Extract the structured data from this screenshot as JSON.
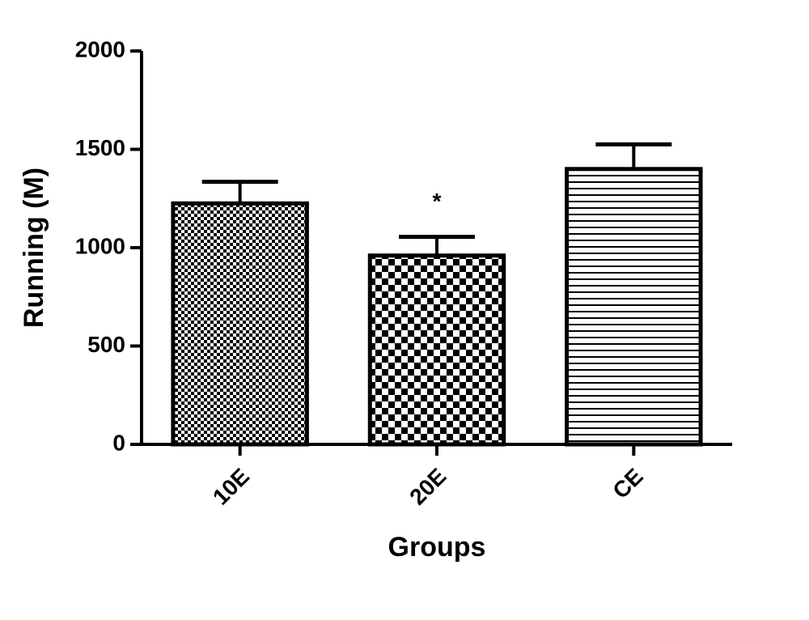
{
  "chart_data": {
    "type": "bar",
    "x_label": "Groups",
    "y_label": "Running (M)",
    "categories": [
      "10E",
      "20E",
      "CE"
    ],
    "values": [
      1225,
      960,
      1400
    ],
    "errors": [
      110,
      95,
      125
    ],
    "color": "#000000",
    "ylim": [
      0,
      2000
    ],
    "yticks": [
      0,
      500,
      1000,
      1500,
      2000
    ],
    "grid": false,
    "annotations": [
      {
        "text": "*",
        "category": "20E"
      }
    ]
  }
}
